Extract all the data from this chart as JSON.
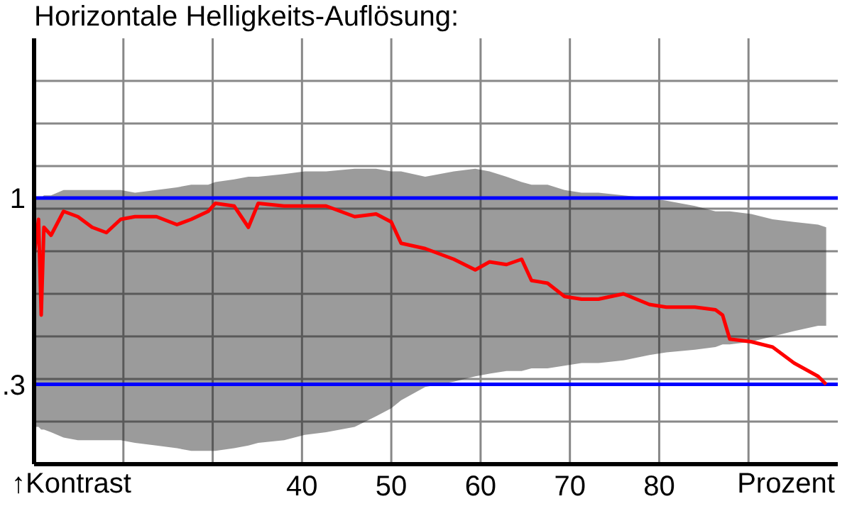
{
  "chart_data": {
    "type": "line",
    "title": "Horizontale Helligkeits-Auflösung:",
    "x": [
      10.0,
      10.5,
      10.8,
      11.1,
      11.9,
      13.3,
      14.9,
      16.5,
      18.1,
      19.7,
      21.3,
      23.7,
      26.0,
      27.6,
      29.5,
      30.3,
      32.4,
      34.0,
      35.1,
      38.0,
      40.3,
      42.7,
      45.9,
      48.3,
      50.0,
      51.1,
      53.8,
      57.0,
      59.4,
      61.0,
      62.9,
      64.6,
      65.7,
      67.5,
      69.4,
      71.3,
      73.2,
      76.0,
      78.9,
      80.8,
      84.0,
      86.3,
      87.1,
      87.9,
      90.3,
      92.7,
      95.1,
      97.8,
      98.7
    ],
    "series": [
      {
        "color": "#ff0000",
        "values": [
          0.78,
          0.92,
          0.56,
          0.89,
          0.86,
          0.95,
          0.93,
          0.89,
          0.87,
          0.92,
          0.93,
          0.93,
          0.9,
          0.92,
          0.95,
          0.98,
          0.97,
          0.89,
          0.98,
          0.97,
          0.97,
          0.97,
          0.93,
          0.94,
          0.91,
          0.83,
          0.81,
          0.77,
          0.73,
          0.76,
          0.75,
          0.77,
          0.69,
          0.68,
          0.63,
          0.62,
          0.62,
          0.64,
          0.6,
          0.59,
          0.59,
          0.58,
          0.56,
          0.47,
          0.46,
          0.44,
          0.38,
          0.33,
          0.3
        ],
        "lower": [
          0.14,
          0.14,
          0.13,
          0.13,
          0.12,
          0.1,
          0.09,
          0.09,
          0.09,
          0.09,
          0.08,
          0.07,
          0.06,
          0.05,
          0.05,
          0.05,
          0.06,
          0.07,
          0.08,
          0.09,
          0.11,
          0.12,
          0.14,
          0.18,
          0.21,
          0.24,
          0.29,
          0.31,
          0.33,
          0.34,
          0.35,
          0.35,
          0.36,
          0.36,
          0.37,
          0.38,
          0.38,
          0.39,
          0.41,
          0.42,
          0.43,
          0.44,
          0.45,
          0.45,
          0.46,
          0.48,
          0.5,
          0.52,
          0.52
        ],
        "upper": [
          1.0,
          1.0,
          1.0,
          1.01,
          1.01,
          1.03,
          1.03,
          1.03,
          1.03,
          1.03,
          1.02,
          1.03,
          1.04,
          1.05,
          1.05,
          1.06,
          1.07,
          1.08,
          1.08,
          1.09,
          1.1,
          1.1,
          1.11,
          1.11,
          1.1,
          1.1,
          1.08,
          1.1,
          1.11,
          1.1,
          1.08,
          1.06,
          1.05,
          1.05,
          1.03,
          1.02,
          1.02,
          1.01,
          1.0,
          0.99,
          0.97,
          0.95,
          0.95,
          0.95,
          0.94,
          0.92,
          0.91,
          0.9,
          0.89
        ]
      }
    ],
    "xlim": [
      10,
      100
    ],
    "xticks": [
      {
        "value": 20,
        "label": null
      },
      {
        "value": 30,
        "label": null
      },
      40,
      50,
      60,
      70,
      80,
      {
        "value": 90,
        "label": null
      }
    ],
    "ylim": [
      0,
      1.6
    ],
    "yticks": [
      {
        "value": 0.16,
        "label": null
      },
      {
        "value": 0.32,
        "label": null
      },
      {
        "value": 0.48,
        "label": null
      },
      {
        "value": 0.64,
        "label": null
      },
      {
        "value": 0.8,
        "label": null
      },
      {
        "value": 0.96,
        "label": null
      },
      {
        "value": 1.12,
        "label": null
      },
      {
        "value": 1.28,
        "label": null
      },
      {
        "value": 1.44,
        "label": null
      }
    ],
    "ref_lines": [
      {
        "axis": "y",
        "value": 1,
        "label": "1",
        "color": "#0000ff"
      },
      {
        "axis": "y",
        "value": 0.3,
        "label": ".3",
        "color": "#0000ff"
      }
    ],
    "annotations": [
      "↑Kontrast",
      "Prozent"
    ],
    "grid": true,
    "legend": false,
    "marker": "none",
    "line_style": "solid"
  }
}
